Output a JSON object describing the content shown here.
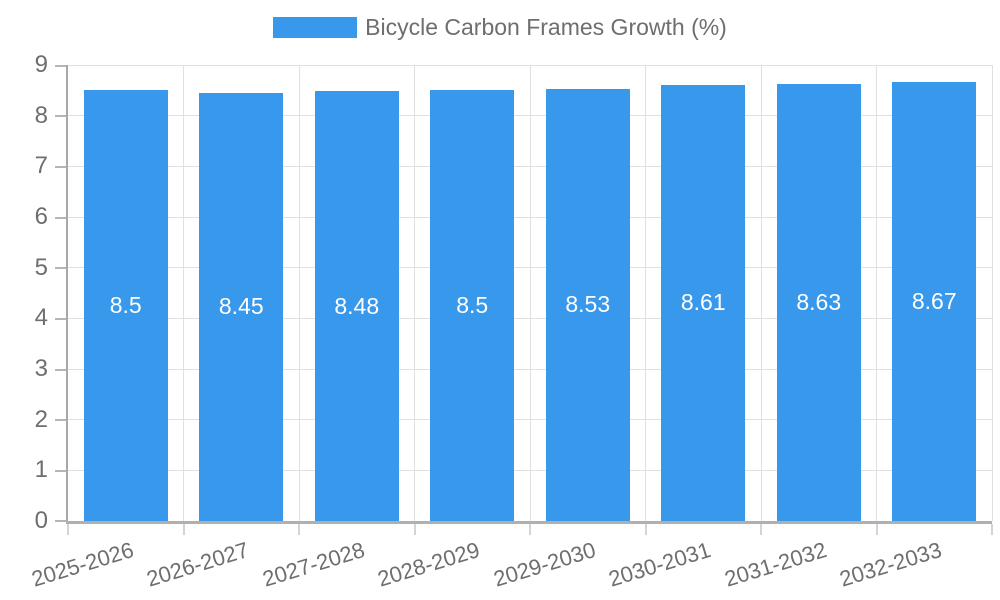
{
  "legend": {
    "label": "Bicycle Carbon Frames Growth (%)"
  },
  "colors": {
    "bar": "#3898ec",
    "axis_label": "#6e6e6e",
    "value_label": "#ffffff",
    "grid": "#e0e0e0",
    "axis_line": "#b0b0b0",
    "background": "#ffffff"
  },
  "chart_data": {
    "type": "bar",
    "title": "Bicycle Carbon Frames Growth (%)",
    "categories": [
      "2025-2026",
      "2026-2027",
      "2027-2028",
      "2028-2029",
      "2029-2030",
      "2030-2031",
      "2031-2032",
      "2032-2033"
    ],
    "values": [
      8.5,
      8.45,
      8.48,
      8.5,
      8.53,
      8.61,
      8.63,
      8.67
    ],
    "value_labels": [
      "8.5",
      "8.45",
      "8.48",
      "8.5",
      "8.53",
      "8.61",
      "8.63",
      "8.67"
    ],
    "xlabel": "",
    "ylabel": "",
    "ylim": [
      0,
      9
    ],
    "y_ticks": [
      0,
      1,
      2,
      3,
      4,
      5,
      6,
      7,
      8,
      9
    ],
    "grid": true,
    "legend_position": "top",
    "series_color": "#3898ec",
    "x_tick_rotation_deg": -17
  }
}
